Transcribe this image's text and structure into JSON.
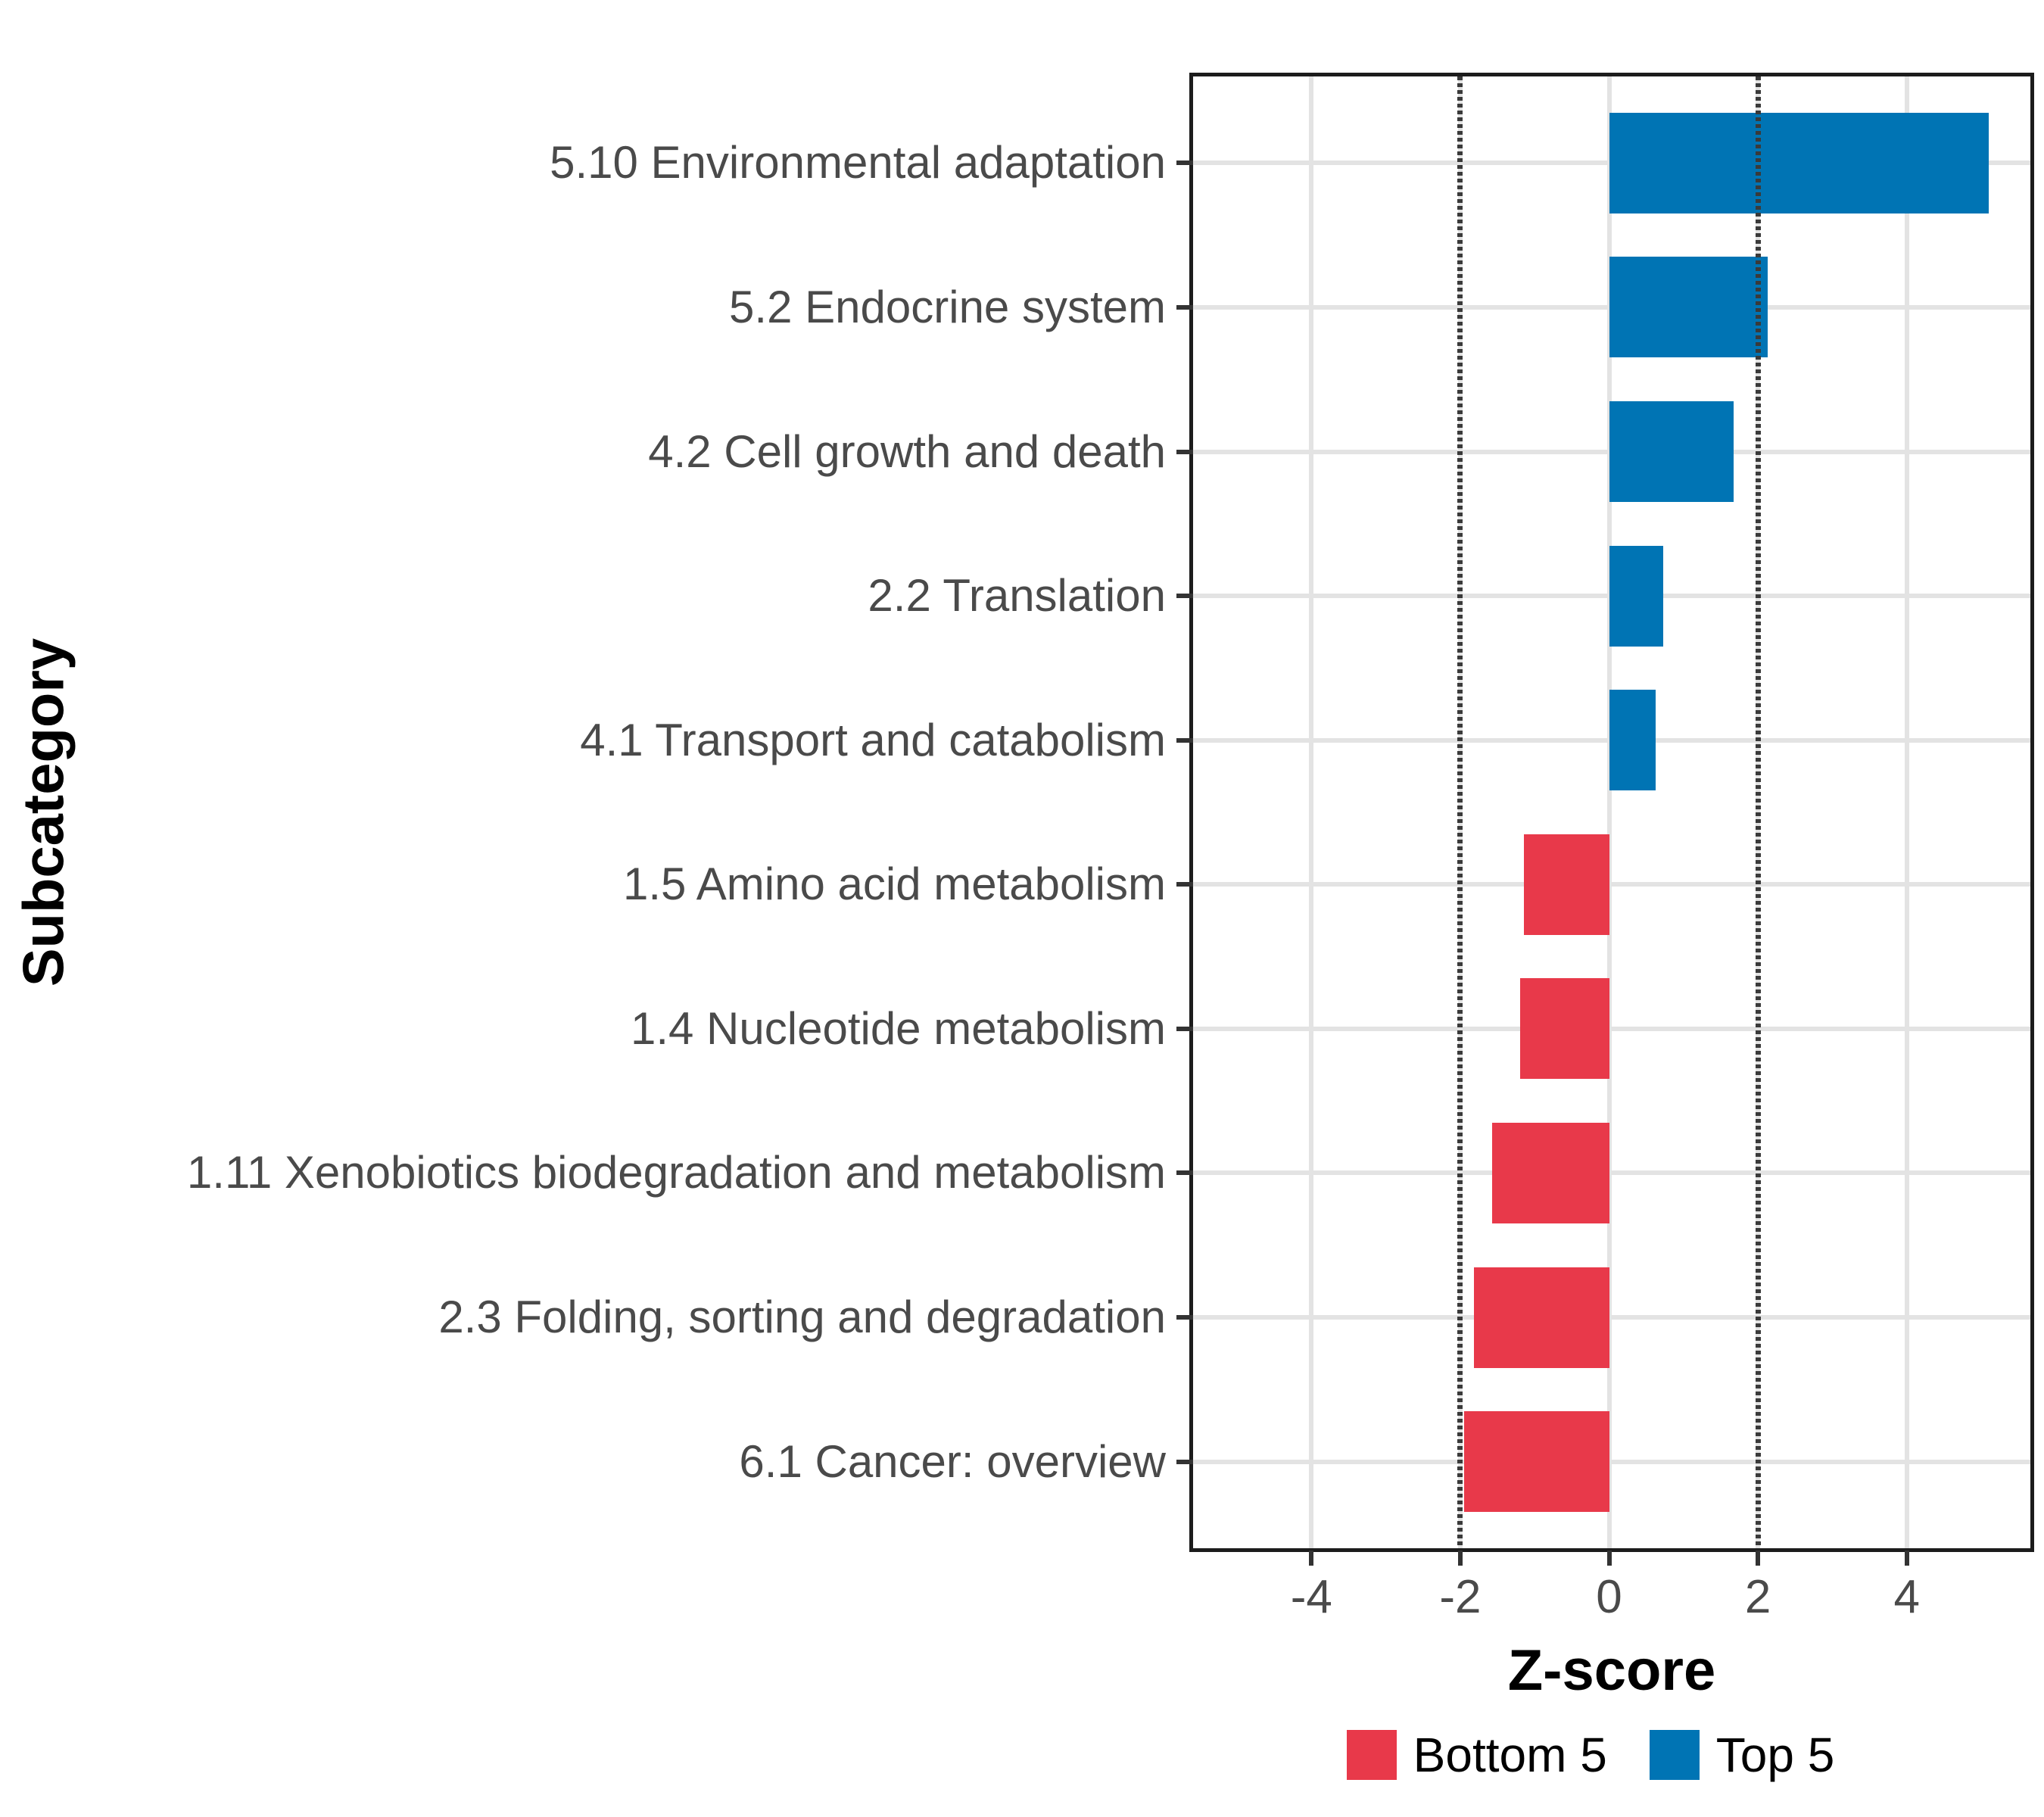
{
  "chart_data": {
    "type": "bar",
    "orientation": "horizontal",
    "xlabel": "Z-score",
    "ylabel": "Subcategory",
    "xlim": [
      -5.59,
      5.66
    ],
    "x_breaks": [
      -4,
      -2,
      0,
      2,
      4
    ],
    "x_break_labels": [
      "-4",
      "-2",
      "0",
      "2",
      "4"
    ],
    "reference_lines": [
      -2,
      2
    ],
    "grid": true,
    "legend_position": "bottom",
    "categories": [
      "5.10 Environmental adaptation",
      "5.2 Endocrine system",
      "4.2 Cell growth and death",
      "2.2 Translation",
      "4.1 Transport and catabolism",
      "1.5 Amino acid metabolism",
      "1.4 Nucleotide metabolism",
      "1.11 Xenobiotics biodegradation and metabolism",
      "2.3 Folding, sorting and degradation",
      "6.1 Cancer: overview"
    ],
    "values": [
      5.1,
      2.13,
      1.67,
      0.73,
      0.63,
      -1.14,
      -1.2,
      -1.57,
      -1.82,
      -1.95
    ],
    "groups": [
      "Top 5",
      "Top 5",
      "Top 5",
      "Top 5",
      "Top 5",
      "Bottom 5",
      "Bottom 5",
      "Bottom 5",
      "Bottom 5",
      "Bottom 5"
    ],
    "colors": {
      "Top 5": "#0074B4",
      "Bottom 5": "#E8394A"
    },
    "legend": [
      {
        "label": "Bottom 5",
        "color": "#E8394A"
      },
      {
        "label": "Top 5",
        "color": "#0074B4"
      }
    ],
    "grid_color": "#E3E3E3",
    "axis_text_color": "#4A4A4A",
    "panel_border_color": "#1C1C1C"
  }
}
